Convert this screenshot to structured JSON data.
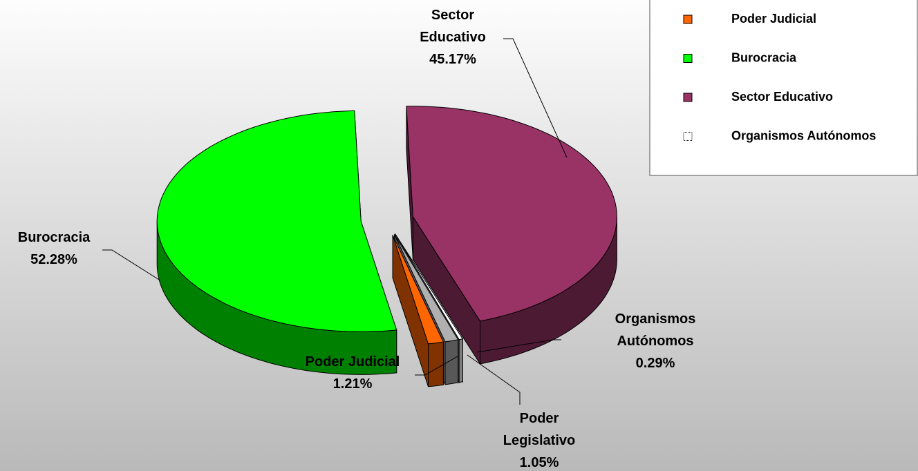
{
  "chart_data": {
    "type": "pie3d",
    "slices": [
      {
        "name": "Poder Judicial",
        "value": 1.21,
        "value_label": "1.21%",
        "color": "#ff6600"
      },
      {
        "name": "Burocracia",
        "value": 52.28,
        "value_label": "52.28%",
        "color": "#00ff00"
      },
      {
        "name": "Sector Educativo",
        "value": 45.17,
        "value_label": "45.17%",
        "color": "#993366"
      },
      {
        "name": "Organismos Autónomos",
        "value": 0.29,
        "value_label": "0.29%",
        "color": "#ffffff"
      },
      {
        "name": "Poder Legislativo",
        "value": 1.05,
        "value_label": "1.05%",
        "color": "#b0b0b0"
      }
    ],
    "legend": {
      "entries": [
        "Poder Judicial",
        "Burocracia",
        "Sector Educativo",
        "Organismos Autónomos"
      ]
    }
  }
}
